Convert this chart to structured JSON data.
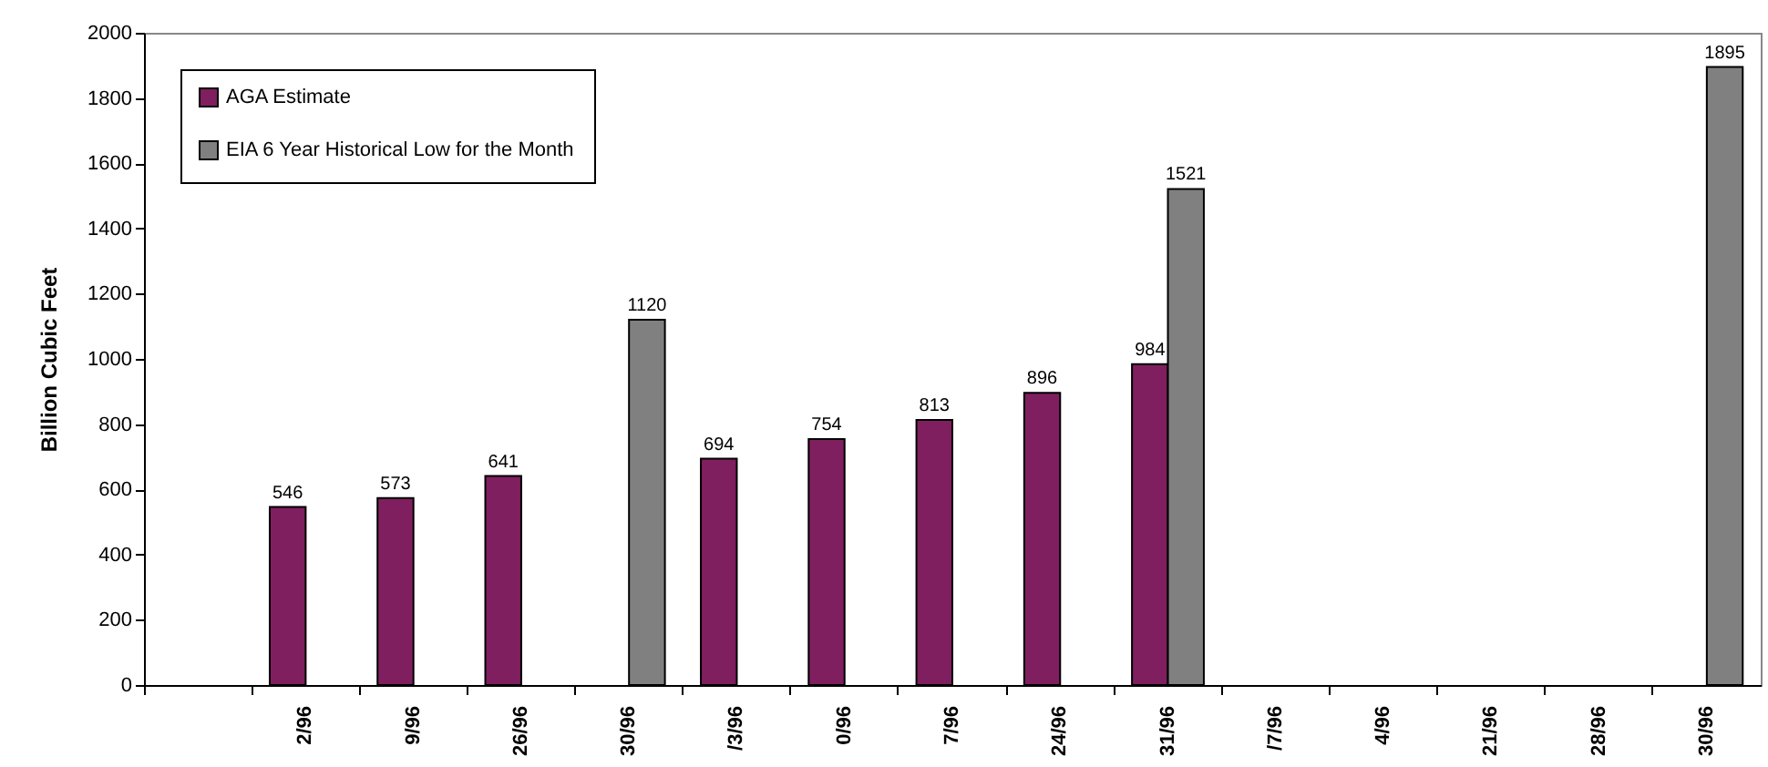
{
  "chart_data": {
    "type": "bar",
    "ylabel": "Billion Cubic Feet",
    "categories": [
      null,
      "2/96",
      "9/96",
      "26/96",
      "30/96",
      "/3/96",
      "0/96",
      "7/96",
      "24/96",
      "31/96",
      "/7/96",
      "4/96",
      "21/96",
      "28/96",
      "30/96"
    ],
    "series": [
      {
        "name": "AGA Estimate",
        "color": "#7f1f5f",
        "values": [
          null,
          546,
          573,
          641,
          null,
          694,
          754,
          813,
          896,
          984,
          null,
          null,
          null,
          null,
          null
        ]
      },
      {
        "name": "EIA 6 Year Historical Low for the Month",
        "color": "#808080",
        "values": [
          null,
          null,
          null,
          null,
          1120,
          null,
          null,
          null,
          null,
          1521,
          null,
          null,
          null,
          null,
          1895
        ]
      }
    ],
    "ylim": [
      0,
      2000
    ],
    "yticks": [
      0,
      200,
      400,
      600,
      800,
      1000,
      1200,
      1400,
      1600,
      1800,
      2000
    ],
    "data_labels": true,
    "grid": false,
    "legend": "top left"
  }
}
